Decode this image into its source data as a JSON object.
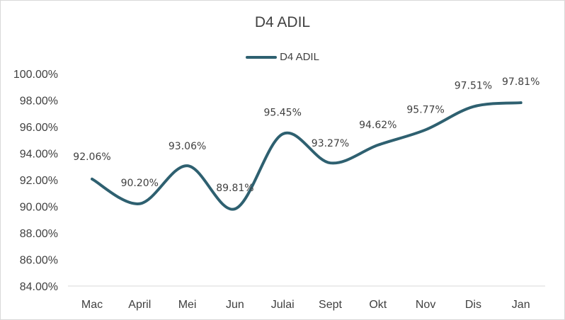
{
  "chart_data": {
    "type": "line",
    "title": "D4 ADIL",
    "xlabel": "",
    "ylabel": "",
    "categories": [
      "Mac",
      "April",
      "Mei",
      "Jun",
      "Julai",
      "Sept",
      "Okt",
      "Nov",
      "Dis",
      "Jan"
    ],
    "series": [
      {
        "name": "D4 ADIL",
        "values": [
          92.06,
          90.2,
          93.06,
          89.81,
          95.45,
          93.27,
          94.62,
          95.77,
          97.51,
          97.81
        ],
        "labels": [
          "92.06%",
          "90.20%",
          "93.06%",
          "89.81%",
          "95.45%",
          "93.27%",
          "94.62%",
          "95.77%",
          "97.51%",
          "97.81%"
        ]
      }
    ],
    "ylim": [
      84,
      100
    ],
    "y_ticks": [
      "84.00%",
      "86.00%",
      "88.00%",
      "90.00%",
      "92.00%",
      "94.00%",
      "96.00%",
      "98.00%",
      "100.00%"
    ],
    "grid": false,
    "smooth": true,
    "legend_position": "top",
    "colors": {
      "series": "#2e6070",
      "text": "#404040",
      "axis": "#d9d9d9"
    }
  }
}
